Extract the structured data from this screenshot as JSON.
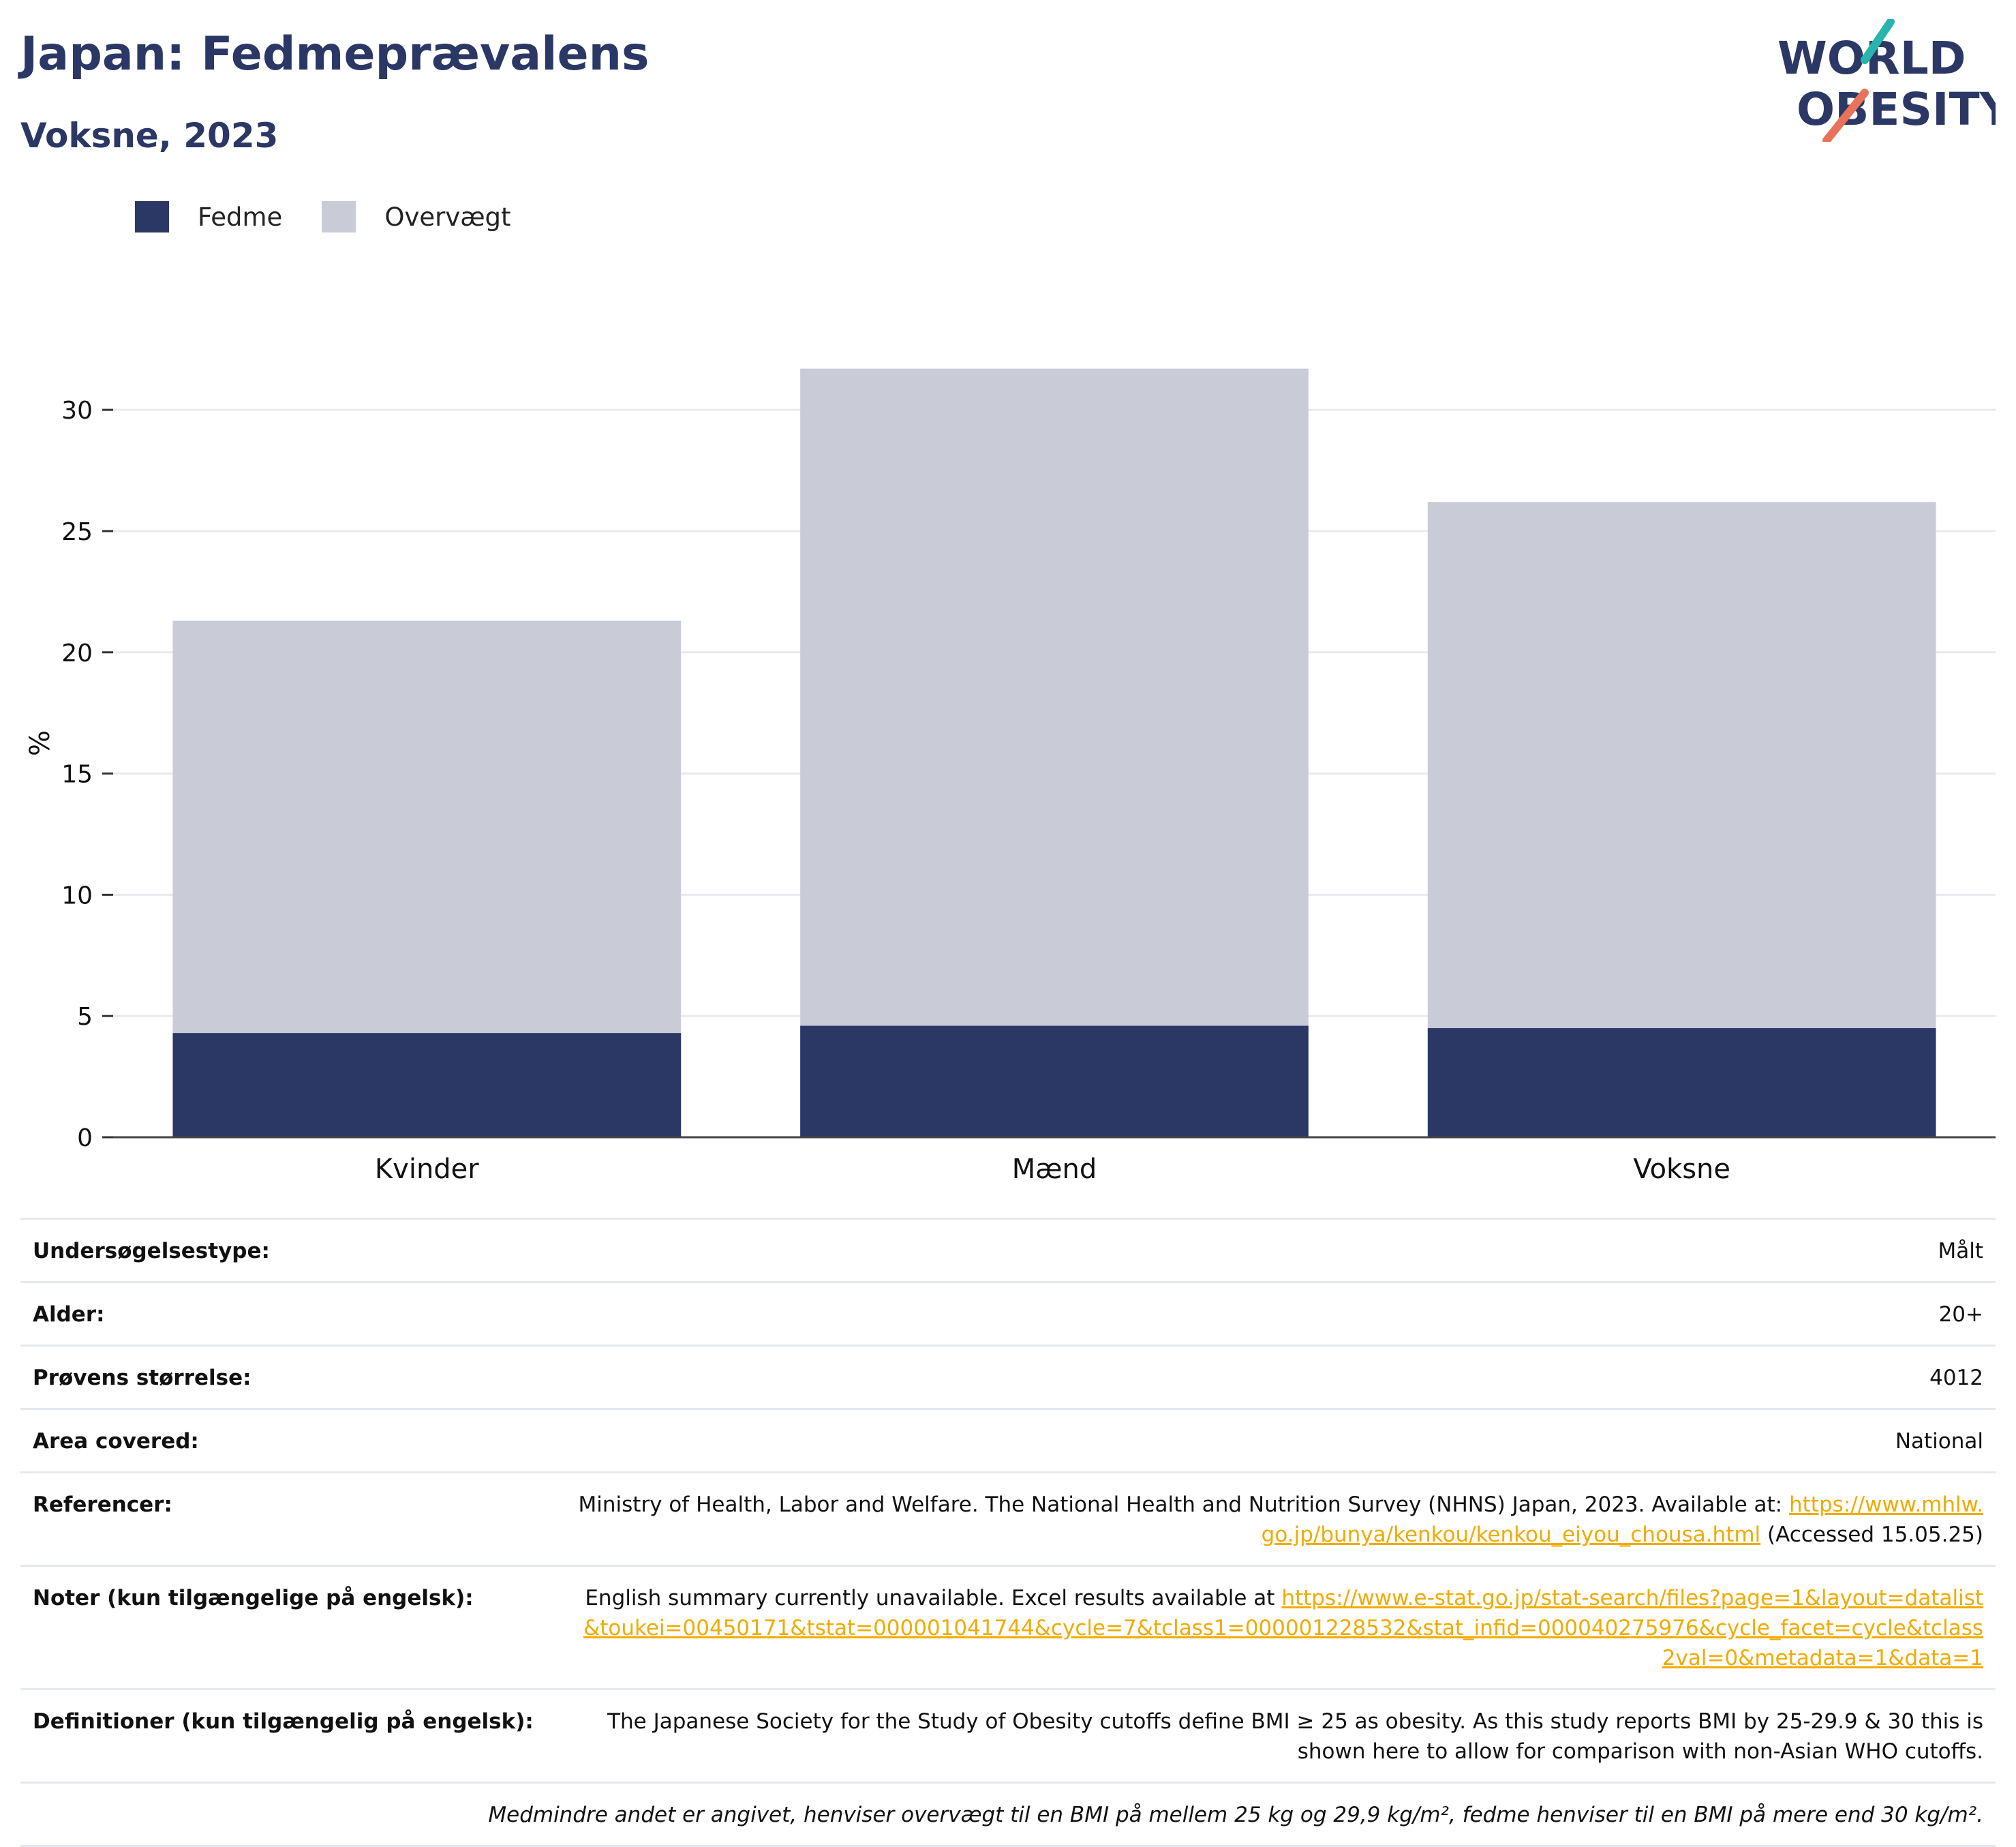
{
  "header": {
    "title": "Japan: Fedmeprævalens",
    "subtitle": "Voksne, 2023",
    "logo_line1": "WORLD",
    "logo_line2": "OBESITY"
  },
  "legend": [
    {
      "label": "Fedme",
      "color": "#2b3866"
    },
    {
      "label": "Overvægt",
      "color": "#c9cbd7"
    }
  ],
  "chart_data": {
    "type": "bar",
    "stacked": true,
    "categories": [
      "Kvinder",
      "Mænd",
      "Voksne"
    ],
    "series": [
      {
        "name": "Fedme",
        "color": "#2b3866",
        "values": [
          4.3,
          4.6,
          4.5
        ]
      },
      {
        "name": "Overvægt",
        "color": "#c9cbd7",
        "values": [
          17.0,
          27.1,
          21.7
        ]
      }
    ],
    "ylabel": "%",
    "xlabel": "",
    "ylim": [
      0,
      32
    ],
    "yticks": [
      0,
      5,
      10,
      15,
      20,
      25,
      30
    ],
    "grid": true,
    "legend_position": "top-left"
  },
  "info": {
    "survey_type": {
      "label": "Undersøgelsestype:",
      "value": "Målt"
    },
    "age": {
      "label": "Alder:",
      "value": "20+"
    },
    "sample_size": {
      "label": "Prøvens størrelse:",
      "value": "4012"
    },
    "area": {
      "label": "Area covered:",
      "value": "National"
    },
    "references": {
      "label": "Referencer:",
      "text": "Ministry of Health, Labor and Welfare. The National Health and Nutrition Survey (NHNS) Japan, 2023. Available at: ",
      "link": "https://www.mhlw.go.jp/bunya/kenkou/kenkou_eiyou_chousa.html",
      "suffix": " (Accessed 15.05.25)"
    },
    "notes": {
      "label": "Noter (kun tilgængelige på engelsk):",
      "text": "English summary currently unavailable. Excel results available at ",
      "link": "https://www.e-stat.go.jp/stat-search/files?page=1&layout=datalist&toukei=00450171&tstat=000001041744&cycle=7&tclass1=000001228532&stat_infid=000040275976&cycle_facet=cycle&tclass2val=0&metadata=1&data=1"
    },
    "definitions": {
      "label": "Definitioner (kun tilgængelig på engelsk):",
      "value": "The Japanese Society for the Study of Obesity cutoffs define BMI ≥ 25 as obesity. As this study reports BMI by 25-29.9 & 30 this is shown here to allow for comparison with non-Asian WHO cutoffs."
    },
    "footnote": "Medmindre andet er angivet, henviser overvægt til en BMI på mellem 25 kg og 29,9 kg/m², fedme henviser til en BMI på mere end 30 kg/m²."
  }
}
